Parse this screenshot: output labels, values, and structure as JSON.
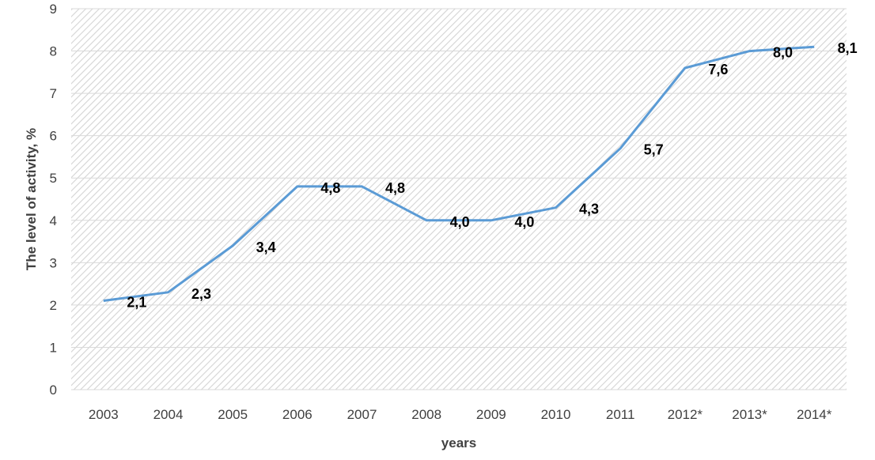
{
  "chart_data": {
    "type": "line",
    "title": "",
    "xlabel": "years",
    "ylabel": "The level of activity, %",
    "categories": [
      "2003",
      "2004",
      "2005",
      "2006",
      "2007",
      "2008",
      "2009",
      "2010",
      "2011",
      "2012*",
      "2013*",
      "2014*"
    ],
    "series": [
      {
        "values": [
          2.1,
          2.3,
          3.4,
          4.8,
          4.8,
          4.0,
          4.0,
          4.3,
          5.7,
          7.6,
          8.0,
          8.1
        ],
        "data_labels": [
          "2,1",
          "2,3",
          "3,4",
          "4,8",
          "4,8",
          "4,0",
          "4,0",
          "4,3",
          "5,7",
          "7,6",
          "8,0",
          "8,1"
        ]
      }
    ],
    "yticks": [
      "0",
      "1",
      "2",
      "3",
      "4",
      "5",
      "6",
      "7",
      "8",
      "9"
    ],
    "ylim": [
      0,
      9
    ],
    "grid": true,
    "legend": "none",
    "colors": {
      "line": "#5b9bd5",
      "gridline": "#d9d9d9",
      "hatch": "#d4d4d4"
    }
  }
}
